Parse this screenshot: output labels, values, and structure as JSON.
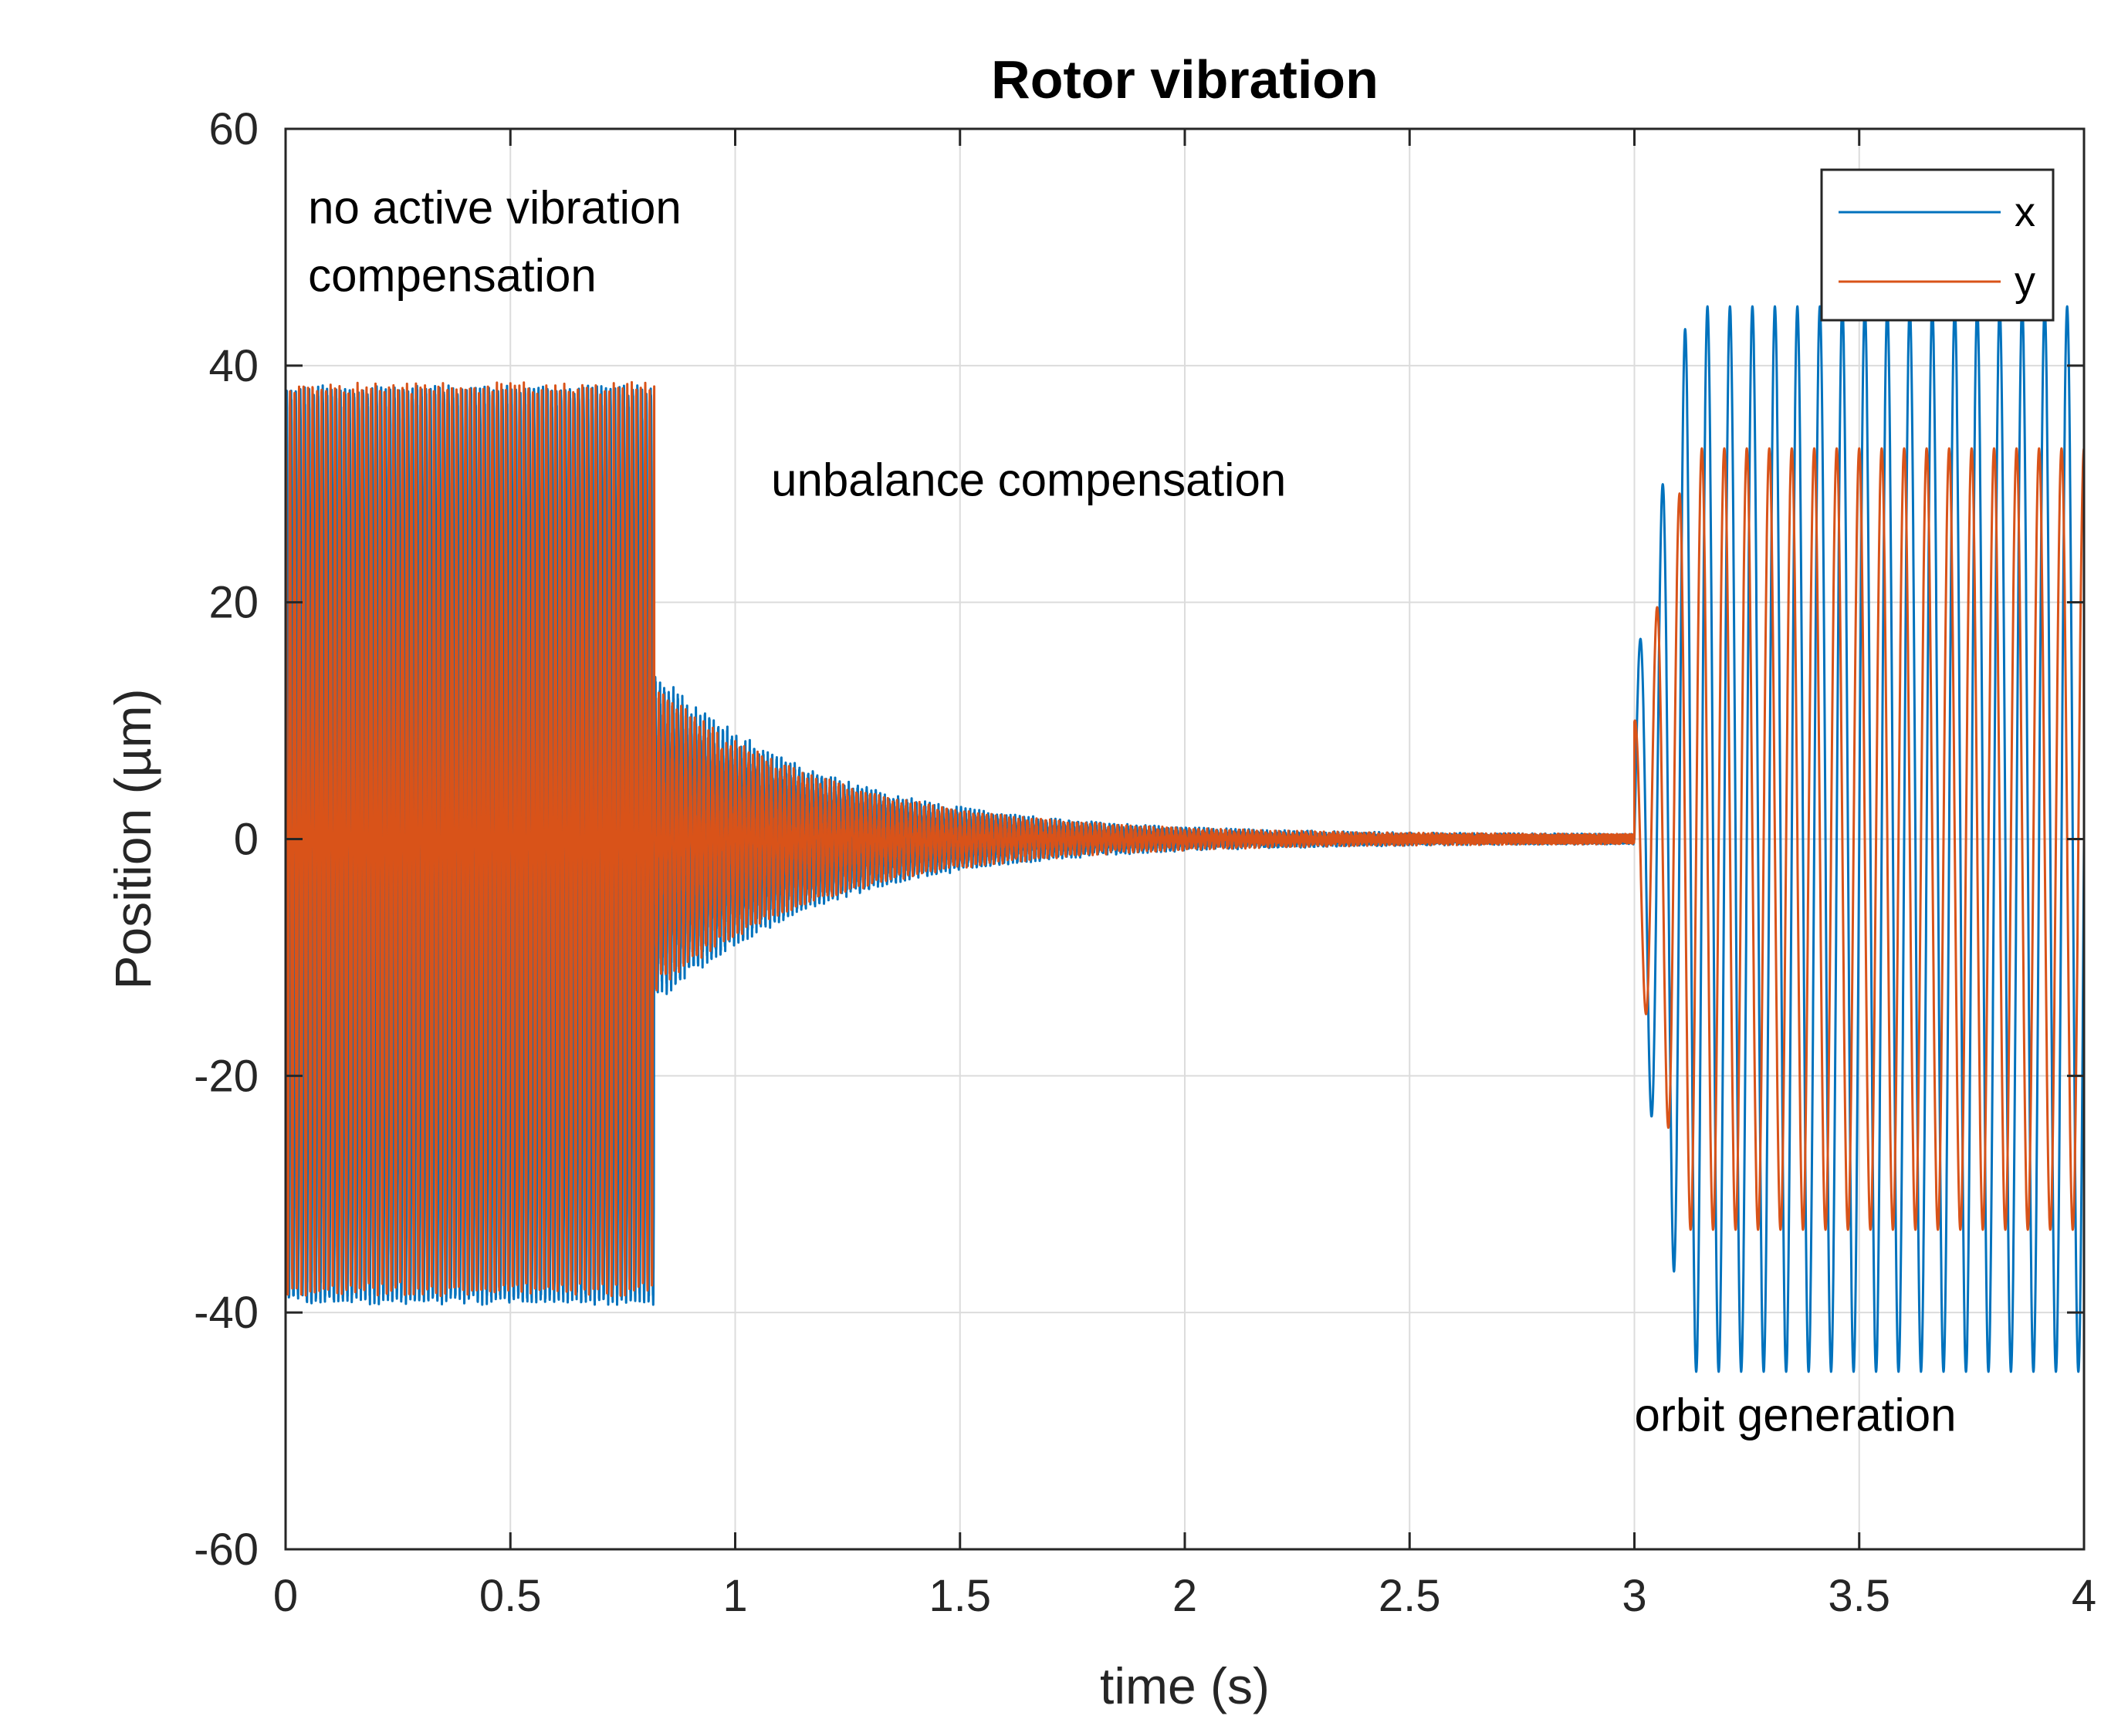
{
  "chart_data": {
    "type": "line",
    "title": "Rotor vibration",
    "xlabel": "time (s)",
    "ylabel": "Position (µm)",
    "xlim": [
      0,
      4
    ],
    "ylim": [
      -60,
      60
    ],
    "grid": true,
    "legend_position": "top-right",
    "x_ticks": [
      "0",
      "0.5",
      "1",
      "1.5",
      "2",
      "2.5",
      "3",
      "3.5",
      "4"
    ],
    "y_ticks": [
      "-60",
      "-40",
      "-20",
      "0",
      "20",
      "40",
      "60"
    ],
    "annotations": [
      {
        "text_lines": [
          "no active vibration",
          "compensation"
        ],
        "x": 0.05,
        "y": 52
      },
      {
        "text_lines": [
          "unbalance compensation"
        ],
        "x": 1.08,
        "y": 29
      },
      {
        "text_lines": [
          "orbit generation"
        ],
        "x": 3.0,
        "y": -50
      }
    ],
    "series": [
      {
        "name": "x",
        "color": "#0072BD",
        "segments": [
          {
            "phase": "no active vibration compensation",
            "t_start": 0.0,
            "t_end": 0.82,
            "amplitude_max": 44,
            "amplitude_min": -45,
            "frequency_hz": 100
          },
          {
            "phase": "unbalance compensation",
            "t_start": 0.82,
            "t_end": 3.0,
            "amplitude_start": 13,
            "decay_time_constant_s": 0.38,
            "frequency_hz": 100
          },
          {
            "phase": "orbit generation",
            "t_start": 3.0,
            "t_end": 4.0,
            "amplitude": 45,
            "frequency_hz": 20
          }
        ]
      },
      {
        "name": "y",
        "color": "#D95319",
        "segments": [
          {
            "phase": "no active vibration compensation",
            "t_start": 0.0,
            "t_end": 0.82,
            "amplitude_max": 38,
            "amplitude_min": -38,
            "frequency_hz": 100
          },
          {
            "phase": "unbalance compensation",
            "t_start": 0.82,
            "t_end": 3.0,
            "amplitude_start": 12,
            "decay_time_constant_s": 0.38,
            "frequency_hz": 100
          },
          {
            "phase": "orbit generation",
            "t_start": 3.0,
            "t_end": 4.0,
            "amplitude": 33,
            "frequency_hz": 20
          }
        ]
      }
    ]
  }
}
